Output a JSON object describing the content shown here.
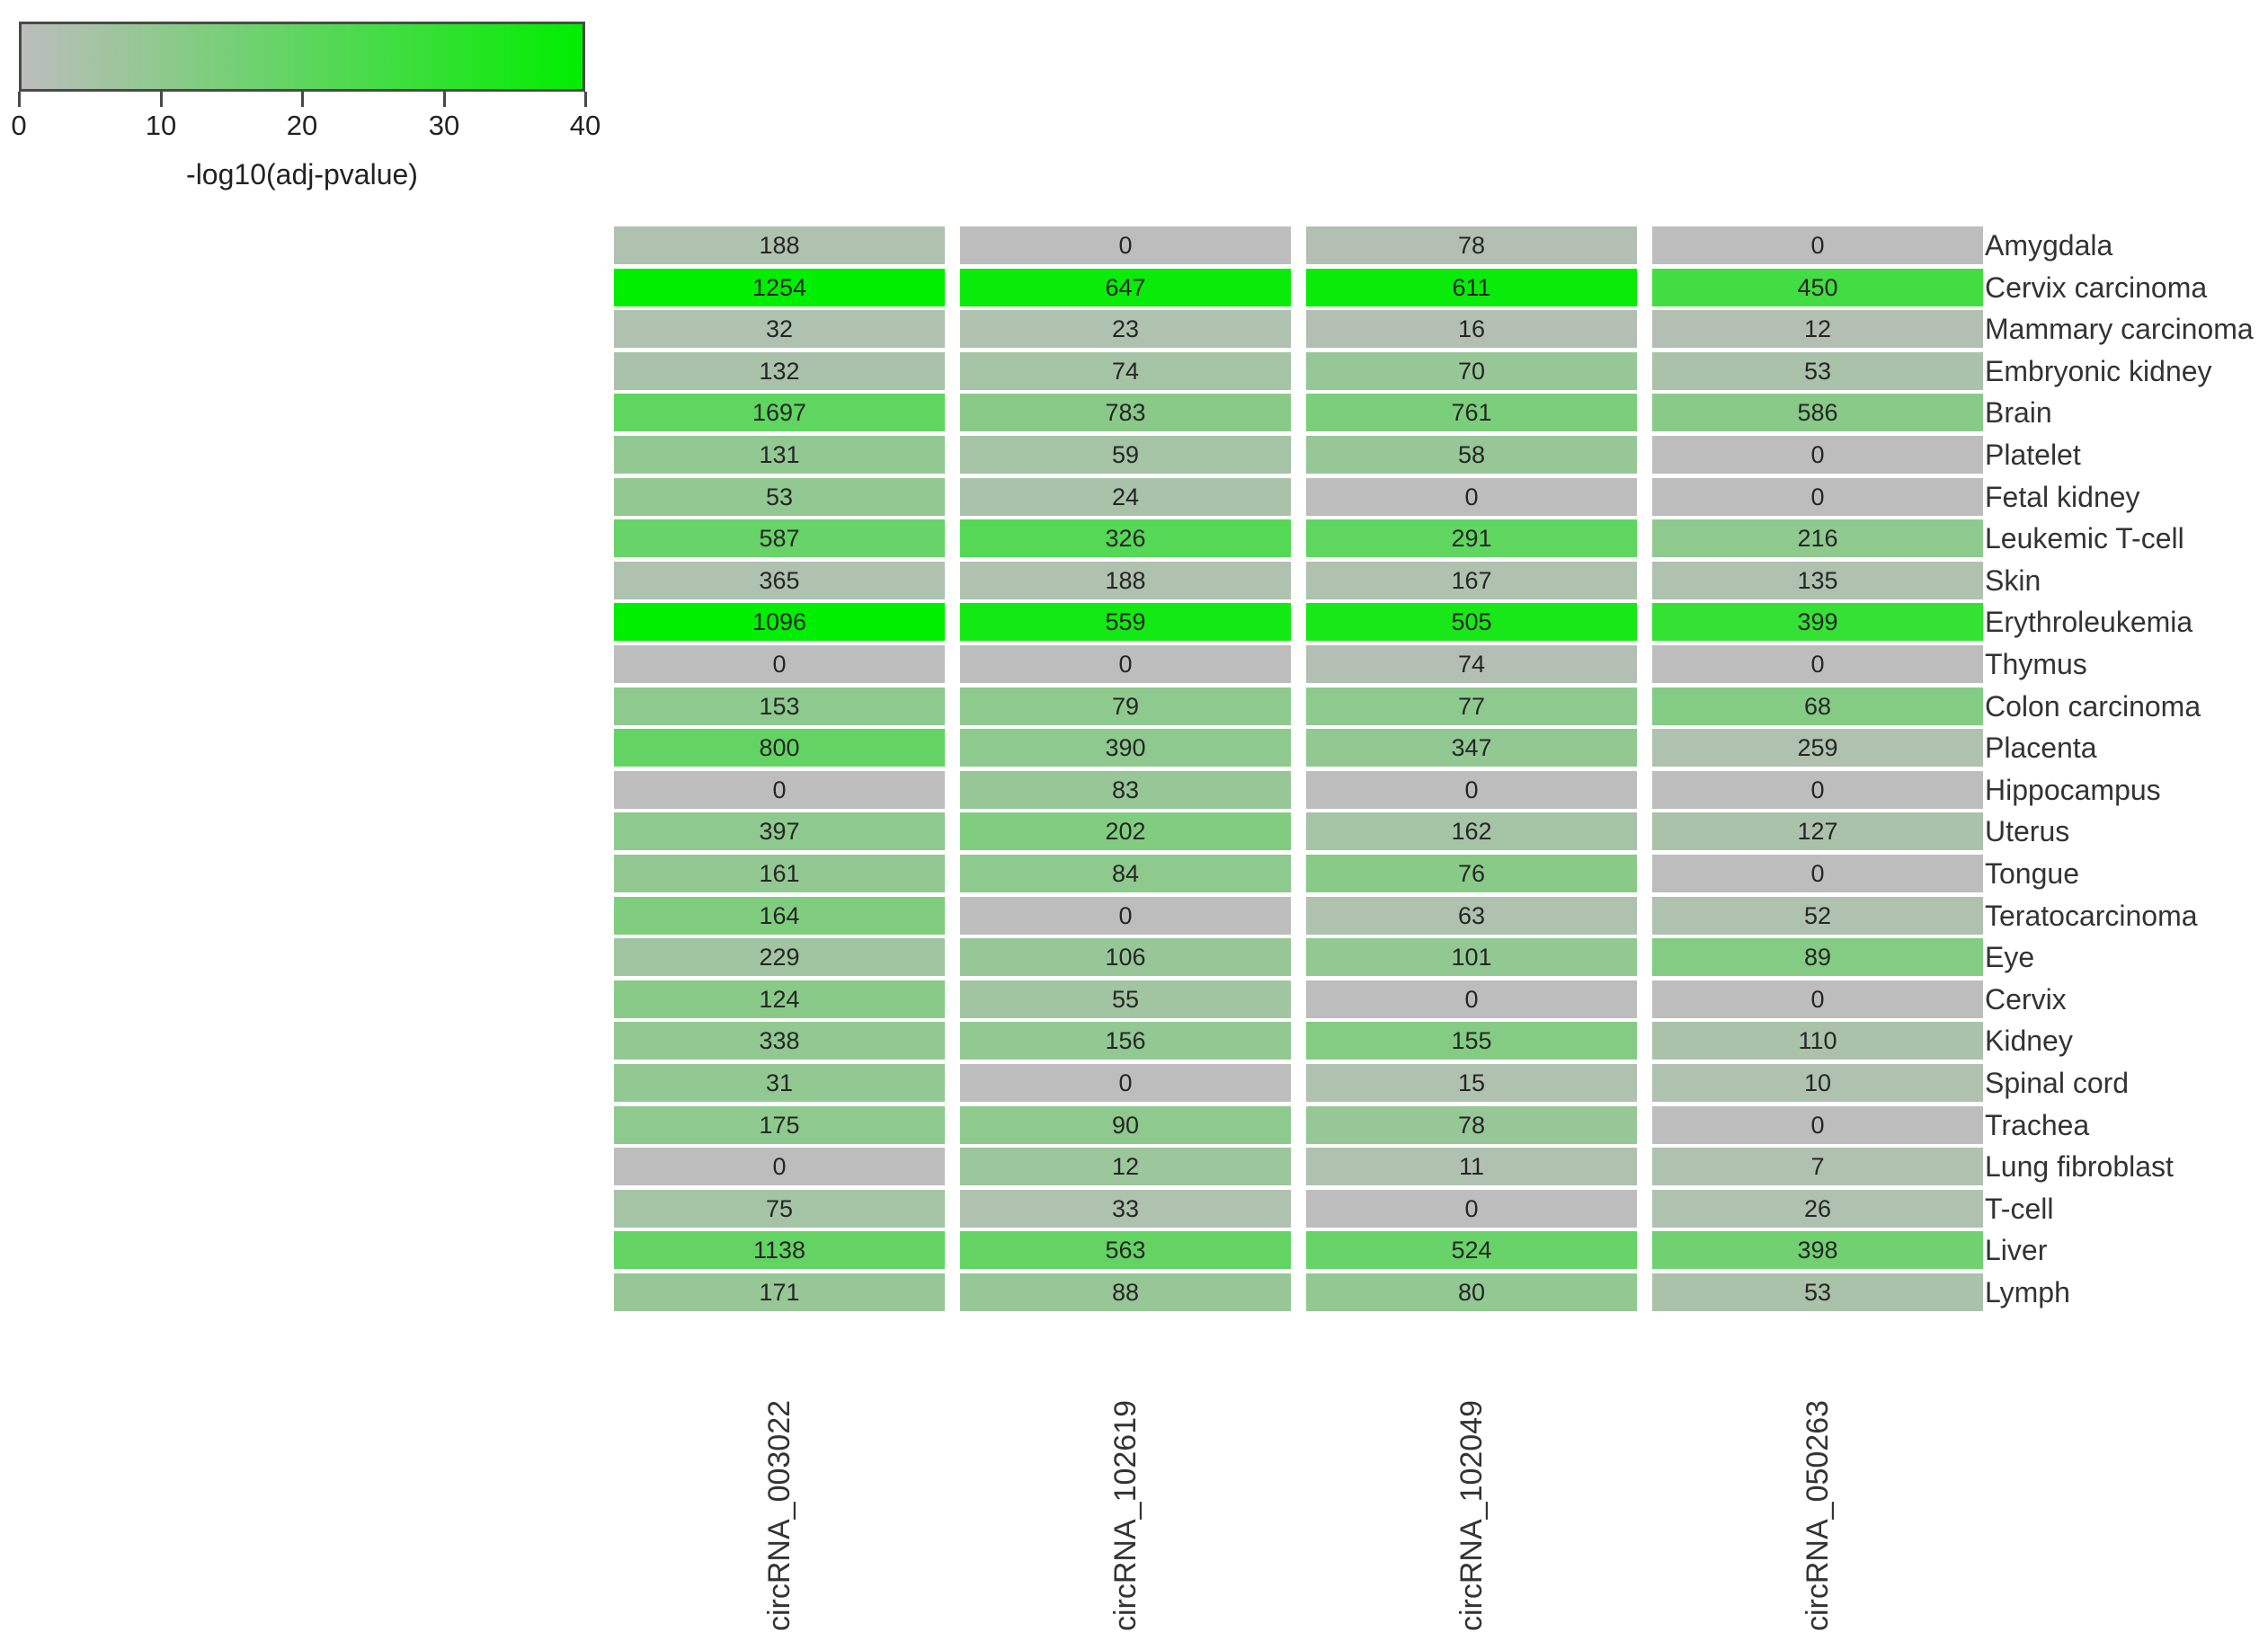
{
  "chart_data": {
    "type": "heatmap",
    "title": "",
    "legend_position": "top-left",
    "colorbar": {
      "label": "-log10(adj-pvalue)",
      "min": 0,
      "max": 40,
      "ticks": [
        "0",
        "10",
        "20",
        "30",
        "40"
      ],
      "gray_color": "#bdbdbd",
      "green_color": "#00ee00",
      "border_color": "#4a4a4a"
    },
    "columns": [
      "circRNA_003022",
      "circRNA_102619",
      "circRNA_102049",
      "circRNA_050263"
    ],
    "rows": [
      "Amygdala",
      "Cervix carcinoma",
      "Mammary carcinoma",
      "Embryonic kidney",
      "Brain",
      "Platelet",
      "Fetal kidney",
      "Leukemic T-cell",
      "Skin",
      "Erythroleukemia",
      "Thymus",
      "Colon carcinoma",
      "Placenta",
      "Hippocampus",
      "Uterus",
      "Tongue",
      "Teratocarcinoma",
      "Eye",
      "Cervix",
      "Kidney",
      "Spinal cord",
      "Trachea",
      "Lung fibroblast",
      "T-cell",
      "Liver",
      "Lymph"
    ],
    "values": [
      [
        188,
        0,
        78,
        0
      ],
      [
        1254,
        647,
        611,
        450
      ],
      [
        32,
        23,
        16,
        12
      ],
      [
        132,
        74,
        70,
        53
      ],
      [
        1697,
        783,
        761,
        586
      ],
      [
        131,
        59,
        58,
        0
      ],
      [
        53,
        24,
        0,
        0
      ],
      [
        587,
        326,
        291,
        216
      ],
      [
        365,
        188,
        167,
        135
      ],
      [
        1096,
        559,
        505,
        399
      ],
      [
        0,
        0,
        74,
        0
      ],
      [
        153,
        79,
        77,
        68
      ],
      [
        800,
        390,
        347,
        259
      ],
      [
        0,
        83,
        0,
        0
      ],
      [
        397,
        202,
        162,
        127
      ],
      [
        161,
        84,
        76,
        0
      ],
      [
        164,
        0,
        63,
        52
      ],
      [
        229,
        106,
        101,
        89
      ],
      [
        124,
        55,
        0,
        0
      ],
      [
        338,
        156,
        155,
        110
      ],
      [
        31,
        0,
        15,
        10
      ],
      [
        175,
        90,
        78,
        0
      ],
      [
        0,
        12,
        11,
        7
      ],
      [
        75,
        33,
        0,
        26
      ],
      [
        1138,
        563,
        524,
        398
      ],
      [
        171,
        88,
        80,
        53
      ]
    ],
    "pvalue_intensity": [
      [
        3,
        0,
        2,
        0
      ],
      [
        40,
        38,
        38,
        26
      ],
      [
        3,
        3,
        2,
        2
      ],
      [
        4,
        5,
        8,
        4
      ],
      [
        20,
        11,
        14,
        11
      ],
      [
        9,
        5,
        8,
        0
      ],
      [
        9,
        4,
        0,
        0
      ],
      [
        18,
        22,
        20,
        10
      ],
      [
        3,
        3,
        3,
        3
      ],
      [
        40,
        36,
        35,
        29
      ],
      [
        0,
        0,
        2,
        0
      ],
      [
        10,
        10,
        10,
        12
      ],
      [
        19,
        10,
        9,
        3
      ],
      [
        0,
        8,
        0,
        0
      ],
      [
        10,
        13,
        5,
        4
      ],
      [
        9,
        10,
        11,
        0
      ],
      [
        13,
        0,
        3,
        3
      ],
      [
        6,
        8,
        9,
        12
      ],
      [
        11,
        6,
        0,
        0
      ],
      [
        9,
        9,
        12,
        4
      ],
      [
        9,
        0,
        3,
        3
      ],
      [
        10,
        10,
        8,
        0
      ],
      [
        0,
        7,
        3,
        3
      ],
      [
        5,
        3,
        0,
        3
      ],
      [
        19,
        19,
        18,
        16
      ],
      [
        8,
        8,
        9,
        4
      ]
    ]
  }
}
